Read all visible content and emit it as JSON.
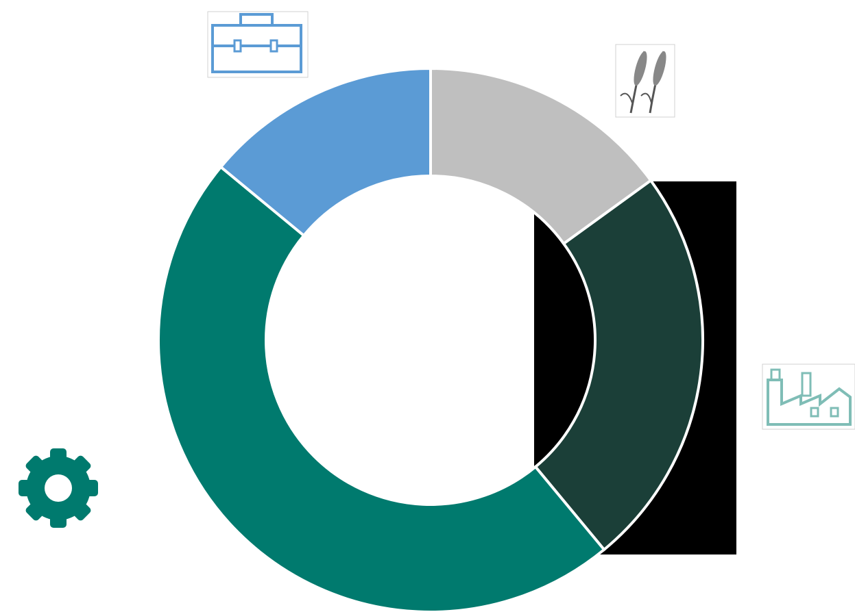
{
  "chart_data": {
    "type": "donut",
    "values": [
      15,
      24,
      47,
      14
    ],
    "colors": [
      "#bfbfbf",
      "#1b3f38",
      "#007a6e",
      "#5b9bd5"
    ]
  }
}
